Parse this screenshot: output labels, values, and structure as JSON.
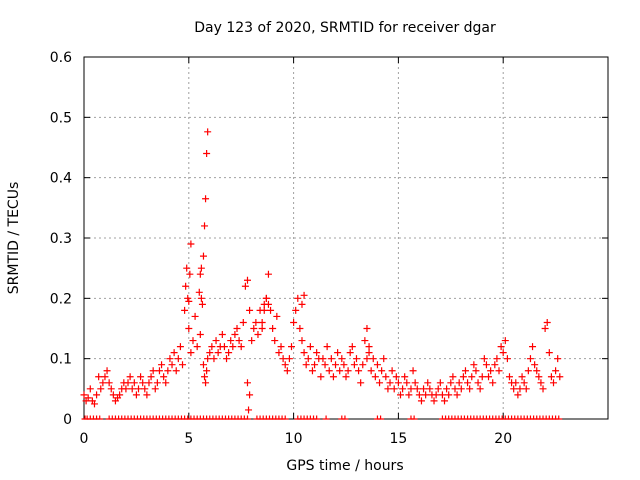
{
  "chart_data": {
    "type": "scatter",
    "title": "Day 123 of 2020, SRMTID for receiver dgar",
    "xlabel": "GPS time / hours",
    "ylabel": "SRMTID / TECUs",
    "xlim": [
      0,
      25
    ],
    "ylim": [
      0,
      0.6
    ],
    "xticks": [
      0,
      5,
      10,
      15,
      20
    ],
    "yticks": [
      0,
      0.1,
      0.2,
      0.3,
      0.4,
      0.5,
      0.6
    ],
    "xtick_labels": [
      "0",
      "5",
      "10",
      "15",
      "20"
    ],
    "ytick_labels": [
      "0",
      "0.1",
      "0.2",
      "0.3",
      "0.4",
      "0.5",
      "0.6"
    ],
    "grid": true,
    "marker": "+",
    "color": "#ff0000",
    "series": [
      {
        "name": "SRMTID",
        "x": [
          0.0,
          0.1,
          0.2,
          0.3,
          0.4,
          0.5,
          0.6,
          0.7,
          0.8,
          0.9,
          1.0,
          1.1,
          1.2,
          1.3,
          1.4,
          1.5,
          1.6,
          1.7,
          1.8,
          1.9,
          2.0,
          2.1,
          2.2,
          2.3,
          2.4,
          2.5,
          2.6,
          2.7,
          2.8,
          2.9,
          3.0,
          3.1,
          3.2,
          3.3,
          3.4,
          3.5,
          3.6,
          3.7,
          3.8,
          3.9,
          4.0,
          4.1,
          4.2,
          4.3,
          4.4,
          4.5,
          4.6,
          4.7,
          4.8,
          4.85,
          4.9,
          4.95,
          5.0,
          5.1,
          5.2,
          5.3,
          5.4,
          5.5,
          5.55,
          5.6,
          5.65,
          5.7,
          5.75,
          5.8,
          5.85,
          5.9,
          6.0,
          6.1,
          6.2,
          6.3,
          6.4,
          6.5,
          6.6,
          6.7,
          6.8,
          6.9,
          7.0,
          7.1,
          7.2,
          7.3,
          7.4,
          7.5,
          7.6,
          7.7,
          7.8,
          7.9,
          8.0,
          8.1,
          8.2,
          8.3,
          8.4,
          8.5,
          8.6,
          8.7,
          8.8,
          8.9,
          9.0,
          9.1,
          9.2,
          9.3,
          9.4,
          9.5,
          9.6,
          9.7,
          9.8,
          9.9,
          10.0,
          10.1,
          10.2,
          10.3,
          10.4,
          10.5,
          10.6,
          10.7,
          10.8,
          10.9,
          11.0,
          11.1,
          11.2,
          11.3,
          11.4,
          11.5,
          11.6,
          11.7,
          11.8,
          11.9,
          12.0,
          12.1,
          12.2,
          12.3,
          12.4,
          12.5,
          12.6,
          12.7,
          12.8,
          12.9,
          13.0,
          13.1,
          13.2,
          13.3,
          13.4,
          13.5,
          13.6,
          13.7,
          13.8,
          13.9,
          14.0,
          14.1,
          14.2,
          14.3,
          14.4,
          14.5,
          14.6,
          14.7,
          14.8,
          14.9,
          15.0,
          15.1,
          15.2,
          15.3,
          15.4,
          15.5,
          15.6,
          15.7,
          15.8,
          15.9,
          16.0,
          16.1,
          16.2,
          16.3,
          16.4,
          16.5,
          16.6,
          16.7,
          16.8,
          16.9,
          17.0,
          17.1,
          17.2,
          17.3,
          17.4,
          17.5,
          17.6,
          17.7,
          17.8,
          17.9,
          18.0,
          18.1,
          18.2,
          18.3,
          18.4,
          18.5,
          18.6,
          18.7,
          18.8,
          18.9,
          19.0,
          19.1,
          19.2,
          19.3,
          19.4,
          19.5,
          19.6,
          19.7,
          19.8,
          19.9,
          20.0,
          20.1,
          20.2,
          20.3,
          20.4,
          20.5,
          20.6,
          20.7,
          20.8,
          20.9,
          21.0,
          21.1,
          21.2,
          21.3,
          21.4,
          21.5,
          21.6,
          21.7,
          21.8,
          21.9,
          22.0,
          22.1,
          22.2,
          22.3,
          22.4,
          22.5,
          22.6,
          22.7,
          5.0,
          5.05,
          5.1,
          5.55,
          5.6,
          5.7,
          5.75,
          5.8,
          5.85,
          5.9,
          8.5,
          8.6,
          8.7,
          8.8,
          10.4,
          10.5,
          13.5,
          13.6,
          7.8,
          7.9,
          7.85
        ],
        "y": [
          0.04,
          0.03,
          0.035,
          0.05,
          0.03,
          0.025,
          0.04,
          0.07,
          0.05,
          0.06,
          0.07,
          0.08,
          0.06,
          0.05,
          0.04,
          0.03,
          0.035,
          0.04,
          0.05,
          0.06,
          0.05,
          0.06,
          0.07,
          0.05,
          0.06,
          0.04,
          0.05,
          0.07,
          0.06,
          0.05,
          0.04,
          0.06,
          0.07,
          0.08,
          0.05,
          0.06,
          0.08,
          0.09,
          0.07,
          0.06,
          0.08,
          0.1,
          0.09,
          0.11,
          0.08,
          0.1,
          0.12,
          0.09,
          0.18,
          0.22,
          0.25,
          0.2,
          0.15,
          0.11,
          0.13,
          0.17,
          0.12,
          0.21,
          0.24,
          0.25,
          0.19,
          0.09,
          0.07,
          0.06,
          0.08,
          0.1,
          0.11,
          0.12,
          0.1,
          0.13,
          0.11,
          0.12,
          0.14,
          0.12,
          0.1,
          0.11,
          0.13,
          0.12,
          0.14,
          0.15,
          0.13,
          0.12,
          0.16,
          0.22,
          0.23,
          0.18,
          0.13,
          0.15,
          0.16,
          0.14,
          0.18,
          0.16,
          0.19,
          0.2,
          0.24,
          0.18,
          0.15,
          0.13,
          0.17,
          0.11,
          0.12,
          0.1,
          0.09,
          0.08,
          0.1,
          0.12,
          0.16,
          0.18,
          0.2,
          0.15,
          0.13,
          0.11,
          0.09,
          0.1,
          0.12,
          0.08,
          0.09,
          0.11,
          0.1,
          0.07,
          0.1,
          0.09,
          0.12,
          0.08,
          0.1,
          0.07,
          0.09,
          0.11,
          0.08,
          0.1,
          0.09,
          0.07,
          0.08,
          0.11,
          0.12,
          0.09,
          0.1,
          0.08,
          0.06,
          0.09,
          0.13,
          0.15,
          0.11,
          0.08,
          0.1,
          0.07,
          0.09,
          0.06,
          0.08,
          0.1,
          0.07,
          0.05,
          0.06,
          0.08,
          0.05,
          0.07,
          0.06,
          0.04,
          0.05,
          0.07,
          0.06,
          0.04,
          0.05,
          0.08,
          0.06,
          0.05,
          0.04,
          0.03,
          0.05,
          0.04,
          0.06,
          0.05,
          0.04,
          0.03,
          0.04,
          0.05,
          0.06,
          0.04,
          0.03,
          0.05,
          0.04,
          0.06,
          0.07,
          0.05,
          0.04,
          0.06,
          0.05,
          0.07,
          0.08,
          0.06,
          0.05,
          0.07,
          0.09,
          0.08,
          0.06,
          0.05,
          0.07,
          0.1,
          0.09,
          0.07,
          0.08,
          0.06,
          0.09,
          0.1,
          0.08,
          0.12,
          0.11,
          0.13,
          0.1,
          0.07,
          0.06,
          0.05,
          0.06,
          0.04,
          0.05,
          0.07,
          0.06,
          0.05,
          0.08,
          0.1,
          0.12,
          0.09,
          0.08,
          0.07,
          0.06,
          0.05,
          0.15,
          0.16,
          0.11,
          0.07,
          0.06,
          0.08,
          0.1,
          0.07,
          0.195,
          0.24,
          0.29,
          0.14,
          0.2,
          0.27,
          0.32,
          0.365,
          0.44,
          0.476,
          0.15,
          0.18,
          0.2,
          0.19,
          0.19,
          0.205,
          0.1,
          0.12,
          0.06,
          0.04,
          0.015
        ]
      }
    ],
    "zero_points_x": [
      0.05,
      0.15,
      0.3,
      0.45,
      0.6,
      0.75,
      1.2,
      1.35,
      1.5,
      1.65,
      1.8,
      1.95,
      2.1,
      2.25,
      2.4,
      2.55,
      2.7,
      2.85,
      3.0,
      3.15,
      3.3,
      3.45,
      3.6,
      3.75,
      3.9,
      4.05,
      4.2,
      4.35,
      4.5,
      4.65,
      4.8,
      4.95,
      5.1,
      5.25,
      5.4,
      5.55,
      5.7,
      5.85,
      6.0,
      6.15,
      6.3,
      6.45,
      6.6,
      6.75,
      6.9,
      7.05,
      7.2,
      7.35,
      7.5,
      7.65,
      7.8,
      8.25,
      8.4,
      8.55,
      8.7,
      8.85,
      9.0,
      9.15,
      9.3,
      9.45,
      9.6,
      10.2,
      10.35,
      10.5,
      10.65,
      10.8,
      10.95,
      11.1,
      11.55,
      12.3,
      12.45,
      14.0,
      14.15,
      15.6,
      15.75,
      17.1,
      17.25,
      17.4,
      17.55,
      17.7,
      17.85,
      18.0,
      18.15,
      18.3,
      18.45,
      18.6,
      18.75,
      18.9,
      19.05,
      19.2,
      19.35,
      19.5,
      19.65,
      19.8,
      19.95,
      20.1,
      20.25,
      20.4,
      20.55,
      20.7,
      20.85,
      21.0,
      21.15,
      21.3,
      21.45,
      21.6,
      21.75,
      21.9,
      22.05,
      22.2,
      22.35,
      22.5,
      22.65
    ]
  }
}
